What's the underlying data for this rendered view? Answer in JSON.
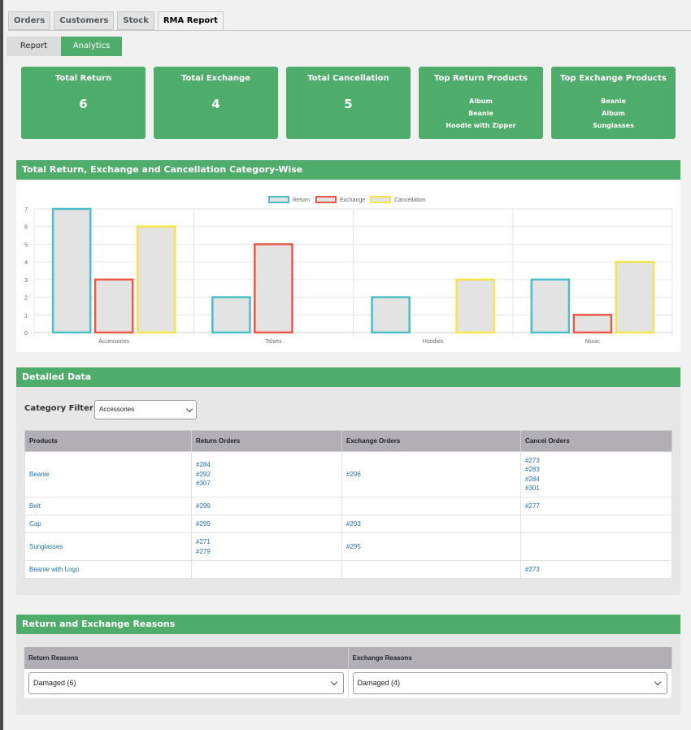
{
  "nav_tabs": [
    "Orders",
    "Customers",
    "Stock",
    "RMA Report"
  ],
  "sub_tabs": [
    "Report",
    "Analytics"
  ],
  "cards": [
    {
      "title": "Total Return",
      "value": "6"
    },
    {
      "title": "Total Exchange",
      "value": "4"
    },
    {
      "title": "Total Cancellation",
      "value": "5"
    },
    {
      "title": "Top Return Products",
      "items": [
        "Album",
        "Beanie",
        "Hoodie with Zipper"
      ]
    },
    {
      "title": "Top Exchange Products",
      "items": [
        "Beanie",
        "Album",
        "Sunglasses"
      ]
    }
  ],
  "chart_section_title": "Total Return, Exchange and Cancellation Category-Wise",
  "chart_data": {
    "type": "bar",
    "categories": [
      "Accessories",
      "Tshirts",
      "Hoodies",
      "Music"
    ],
    "series": [
      {
        "name": "Return",
        "values": [
          7,
          2,
          2,
          3
        ],
        "color": "#4bbfc7"
      },
      {
        "name": "Exchange",
        "values": [
          3,
          5,
          0,
          1
        ],
        "color": "#ea5a48"
      },
      {
        "name": "Cancellation",
        "values": [
          6,
          0,
          3,
          4
        ],
        "color": "#f5e44a"
      }
    ],
    "ylim": [
      0,
      7
    ],
    "yticks": [
      "0",
      "1",
      "2",
      "3",
      "4",
      "5",
      "6",
      "7"
    ],
    "legend": "top-center",
    "grid": true
  },
  "detail": {
    "title": "Detailed Data",
    "filter_label": "Category Filter",
    "filter_value": "Accessories",
    "columns": [
      "Products",
      "Return Orders",
      "Exchange Orders",
      "Cancel Orders"
    ],
    "rows": [
      {
        "product": "Beanie",
        "return": [
          "#284",
          "#292",
          "#307"
        ],
        "exchange": [
          "#296"
        ],
        "cancel": [
          "#273",
          "#283",
          "#284",
          "#301"
        ]
      },
      {
        "product": "Belt",
        "return": [
          "#299"
        ],
        "exchange": [],
        "cancel": [
          "#277"
        ]
      },
      {
        "product": "Cap",
        "return": [
          "#299"
        ],
        "exchange": [
          "#293"
        ],
        "cancel": []
      },
      {
        "product": "Sunglasses",
        "return": [
          "#271",
          "#279"
        ],
        "exchange": [
          "#295"
        ],
        "cancel": []
      },
      {
        "product": "Beanie with Logo",
        "return": [],
        "exchange": [],
        "cancel": [
          "#273"
        ]
      }
    ]
  },
  "reasons": {
    "title": "Return and Exchange Reasons",
    "return_header": "Return Reasons",
    "exchange_header": "Exchange Reasons",
    "return_value": "Damaged (6)",
    "exchange_value": "Damaged (4)"
  }
}
